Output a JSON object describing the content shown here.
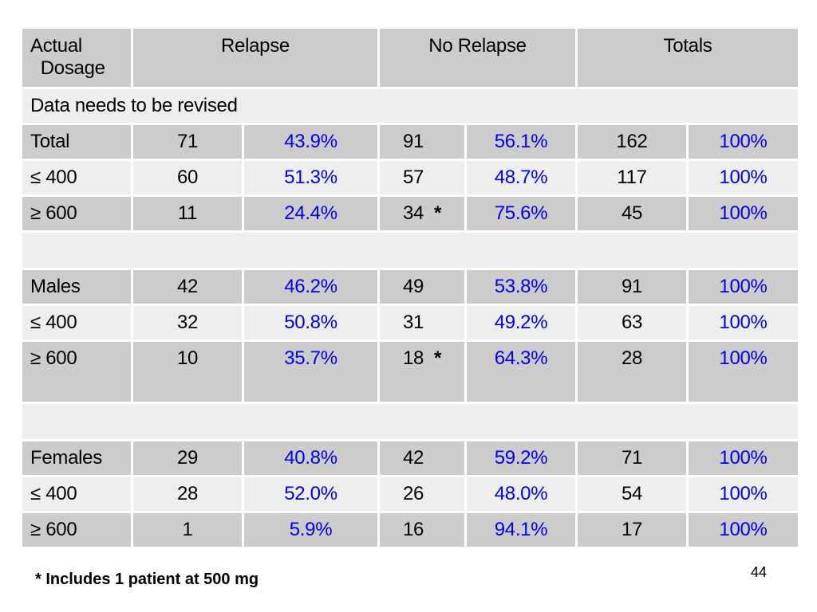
{
  "header": {
    "dosage_line1": "Actual",
    "dosage_line2": "Dosage",
    "relapse": "Relapse",
    "no_relapse": "No Relapse",
    "totals": "Totals"
  },
  "note_row": "Data needs to be revised",
  "sections": [
    {
      "rows": [
        {
          "label": "Total",
          "relapse_n": "71",
          "relapse_pct": "43.9%",
          "norelapse_n": "91",
          "star": "",
          "norelapse_pct": "56.1%",
          "total_n": "162",
          "total_pct": "100%"
        },
        {
          "label": "≤ 400",
          "relapse_n": "60",
          "relapse_pct": "51.3%",
          "norelapse_n": "57",
          "star": "",
          "norelapse_pct": "48.7%",
          "total_n": "117",
          "total_pct": "100%"
        },
        {
          "label": "≥ 600",
          "relapse_n": "11",
          "relapse_pct": "24.4%",
          "norelapse_n": "34",
          "star": "*",
          "norelapse_pct": "75.6%",
          "total_n": "45",
          "total_pct": "100%"
        }
      ]
    },
    {
      "rows": [
        {
          "label": "Males",
          "relapse_n": "42",
          "relapse_pct": "46.2%",
          "norelapse_n": "49",
          "star": "",
          "norelapse_pct": "53.8%",
          "total_n": "91",
          "total_pct": "100%"
        },
        {
          "label": "≤ 400",
          "relapse_n": "32",
          "relapse_pct": "50.8%",
          "norelapse_n": "31",
          "star": "",
          "norelapse_pct": "49.2%",
          "total_n": "63",
          "total_pct": "100%"
        },
        {
          "label": "≥ 600",
          "relapse_n": "10",
          "relapse_pct": "35.7%",
          "norelapse_n": "18",
          "star": "*",
          "norelapse_pct": "64.3%",
          "total_n": "28",
          "total_pct": "100%"
        }
      ]
    },
    {
      "rows": [
        {
          "label": "Females",
          "relapse_n": "29",
          "relapse_pct": "40.8%",
          "norelapse_n": "42",
          "star": "",
          "norelapse_pct": "59.2%",
          "total_n": "71",
          "total_pct": "100%"
        },
        {
          "label": "≤ 400",
          "relapse_n": "28",
          "relapse_pct": "52.0%",
          "norelapse_n": "26",
          "star": "",
          "norelapse_pct": "48.0%",
          "total_n": "54",
          "total_pct": "100%"
        },
        {
          "label": "≥ 600",
          "relapse_n": "1",
          "relapse_pct": "5.9%",
          "norelapse_n": "16",
          "star": "",
          "norelapse_pct": "94.1%",
          "total_n": "17",
          "total_pct": "100%"
        }
      ]
    }
  ],
  "footnote": "* Includes 1 patient at 500 mg",
  "page_number": "44",
  "colors": {
    "percent_text": "#0000ee",
    "row_dark": "#cccccc",
    "row_light": "#eeeeee"
  }
}
